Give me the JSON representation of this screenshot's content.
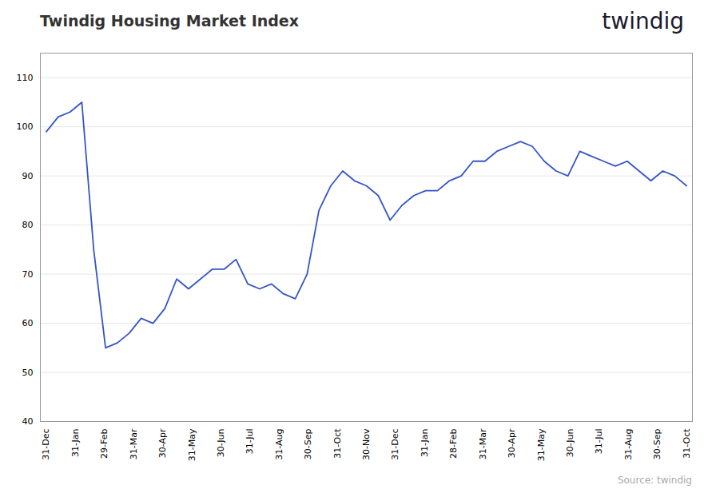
{
  "chart_data": {
    "type": "line",
    "title": "Twindig Housing Market Index",
    "color": "#3555C8",
    "x": [
      0,
      1,
      2,
      3,
      4,
      5,
      6,
      7,
      8,
      9,
      10,
      11,
      12,
      13,
      14,
      15,
      16,
      17,
      18,
      19,
      20,
      21,
      22,
      23,
      24,
      25,
      26,
      27,
      28,
      29,
      30,
      31,
      32,
      33,
      34,
      35,
      36,
      37,
      38,
      39,
      40,
      41,
      42,
      43,
      44,
      45,
      46,
      47,
      48,
      49,
      50,
      51,
      52,
      53,
      54
    ],
    "values": [
      99,
      102,
      103,
      105,
      75,
      55,
      56,
      58,
      61,
      60,
      63,
      69,
      67,
      69,
      71,
      71,
      73,
      68,
      67,
      68,
      66,
      65,
      70,
      83,
      88,
      91,
      89,
      88,
      86,
      81,
      84,
      86,
      87,
      87,
      89,
      90,
      93,
      93,
      95,
      96,
      97,
      96,
      93,
      91,
      90,
      95,
      94,
      93,
      92,
      93,
      91,
      89,
      91,
      90,
      88
    ],
    "xlim": [
      -0.5,
      54.5
    ],
    "xticks": [
      {
        "value": 0,
        "label": "31-Dec"
      },
      {
        "value": 2.4545454545454546,
        "label": "31-Jan"
      },
      {
        "value": 4.909090909090909,
        "label": "29-Feb"
      },
      {
        "value": 7.363636363636363,
        "label": "31-Mar"
      },
      {
        "value": 9.818181818181818,
        "label": "30-Apr"
      },
      {
        "value": 12.272727272727273,
        "label": "31-May"
      },
      {
        "value": 14.727272727272727,
        "label": "30-Jun"
      },
      {
        "value": 17.181818181818183,
        "label": "31-Jul"
      },
      {
        "value": 19.636363636363637,
        "label": "31-Aug"
      },
      {
        "value": 22.09090909090909,
        "label": "30-Sep"
      },
      {
        "value": 24.545454545454547,
        "label": "31-Oct"
      },
      {
        "value": 27,
        "label": "30-Nov"
      },
      {
        "value": 29.454545454545453,
        "label": "31-Dec"
      },
      {
        "value": 31.90909090909091,
        "label": "31-Jan"
      },
      {
        "value": 34.36363636363637,
        "label": "28-Feb"
      },
      {
        "value": 36.81818181818182,
        "label": "31-Mar"
      },
      {
        "value": 39.27272727272727,
        "label": "30-Apr"
      },
      {
        "value": 41.72727272727273,
        "label": "31-May"
      },
      {
        "value": 44.18181818181818,
        "label": "30-Jun"
      },
      {
        "value": 46.63636363636363,
        "label": "31-Jul"
      },
      {
        "value": 49.09090909090909,
        "label": "31-Aug"
      },
      {
        "value": 51.54545454545455,
        "label": "30-Sep"
      },
      {
        "value": 54,
        "label": "31-Oct"
      }
    ],
    "ylim": [
      40,
      115
    ],
    "yticks": [
      40,
      50,
      60,
      70,
      80,
      90,
      100,
      110
    ],
    "grid": true,
    "annotations": [
      {
        "text": "twindig",
        "color": "#1a1a2e"
      },
      {
        "text": "Source: twindig",
        "color": "#aaaaaa"
      }
    ]
  }
}
